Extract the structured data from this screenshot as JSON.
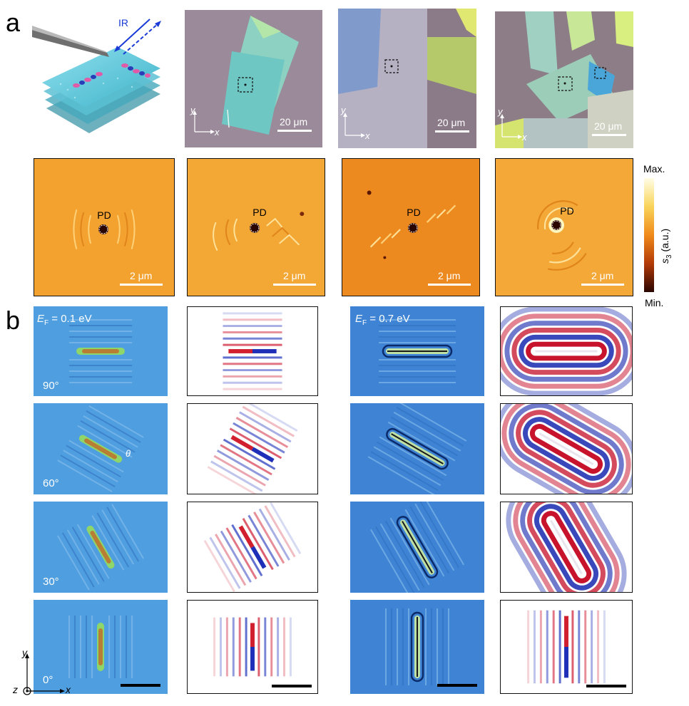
{
  "panels": {
    "a": {
      "label": "a",
      "schematic": {
        "beam_label": "IR"
      },
      "micrographs": [
        {
          "scale_bar": "20 μm",
          "axes": {
            "x": "x",
            "y": "y"
          }
        },
        {
          "scale_bar": "20 μm",
          "axes": {
            "x": "x",
            "y": "y"
          }
        },
        {
          "scale_bar": "20 μm",
          "axes": {
            "x": "x",
            "y": "y"
          }
        }
      ],
      "near_field_maps": [
        {
          "marker": "PD",
          "scale_bar": "2 μm"
        },
        {
          "marker": "PD",
          "scale_bar": "2 μm"
        },
        {
          "marker": "PD",
          "scale_bar": "2 μm"
        },
        {
          "marker": "PD",
          "scale_bar": "2 μm"
        }
      ],
      "colorbar": {
        "max": "Max.",
        "min": "Min.",
        "quantity": "s",
        "subscript": "3",
        "unit": " (a.u.)",
        "colors": [
          "#fffde6",
          "#f9d45a",
          "#f08a1a",
          "#b23a07",
          "#2a0500"
        ]
      }
    },
    "b": {
      "label": "b",
      "fermi_low": {
        "symbol": "E",
        "sub": "F",
        "value": " = 0.1 eV"
      },
      "fermi_high": {
        "symbol": "E",
        "sub": "F",
        "value": " = 0.7 eV"
      },
      "angles": [
        "90°",
        "60°",
        "30°",
        "0°"
      ],
      "axes": {
        "x": "x",
        "y": "y",
        "z": "z"
      }
    }
  }
}
